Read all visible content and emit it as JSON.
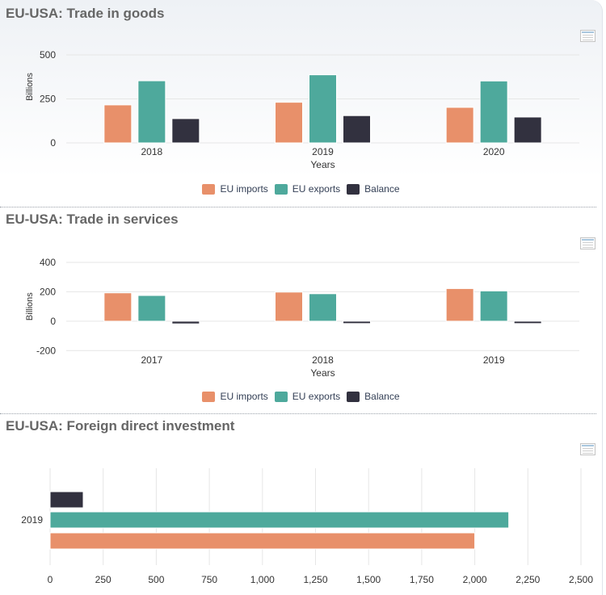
{
  "colors": {
    "imports": "#e8906a",
    "exports": "#4ea99c",
    "balance": "#32313f"
  },
  "legend": {
    "items": [
      {
        "key": "imports",
        "label": "EU imports"
      },
      {
        "key": "exports",
        "label": "EU exports"
      },
      {
        "key": "balance",
        "label": "Balance"
      }
    ]
  },
  "sections": {
    "goods": {
      "title": "EU-USA: Trade in goods",
      "table_icon": "table-view-icon"
    },
    "services": {
      "title": "EU-USA: Trade in services",
      "table_icon": "table-view-icon"
    },
    "fdi": {
      "title": "EU-USA: Foreign direct investment",
      "table_icon": "table-view-icon"
    }
  },
  "chart_data": [
    {
      "type": "bar",
      "title": "EU-USA: Trade in goods",
      "categories": [
        "2018",
        "2019",
        "2020"
      ],
      "xlabel": "Years",
      "ylabel": "Billions",
      "ylim": [
        0,
        500
      ],
      "yticks": [
        0,
        250,
        500
      ],
      "ytick_labels": [
        "0",
        "250",
        "500"
      ],
      "grid": true,
      "legend_position": "bottom",
      "series": [
        {
          "name": "EU imports",
          "values": [
            216,
            231,
            202
          ]
        },
        {
          "name": "EU exports",
          "values": [
            353,
            387,
            352
          ]
        },
        {
          "name": "Balance",
          "values": [
            138,
            155,
            147
          ]
        }
      ]
    },
    {
      "type": "bar",
      "title": "EU-USA: Trade in services",
      "categories": [
        "2017",
        "2018",
        "2019"
      ],
      "xlabel": "Years",
      "ylabel": "Billions",
      "ylim": [
        -200,
        400
      ],
      "yticks": [
        -200,
        0,
        200,
        400
      ],
      "ytick_labels": [
        "-200",
        "0",
        "200",
        "400"
      ],
      "grid": true,
      "legend_position": "bottom",
      "series": [
        {
          "name": "EU imports",
          "values": [
            193,
            198,
            222
          ]
        },
        {
          "name": "EU exports",
          "values": [
            175,
            187,
            206
          ]
        },
        {
          "name": "Balance",
          "values": [
            -18,
            -16,
            -16
          ]
        }
      ]
    },
    {
      "type": "bar",
      "orientation": "horizontal",
      "title": "EU-USA: Foreign direct investment",
      "categories": [
        "2019"
      ],
      "xlim": [
        0,
        2500
      ],
      "xticks": [
        0,
        250,
        500,
        750,
        1000,
        1250,
        1500,
        1750,
        2000,
        2250,
        2500
      ],
      "xtick_labels": [
        "0",
        "250",
        "500",
        "750",
        "1,000",
        "1,250",
        "1,500",
        "1,750",
        "2,000",
        "2,250",
        "2,500"
      ],
      "grid": true,
      "series": [
        {
          "name": "Balance",
          "values": [
            156
          ]
        },
        {
          "name": "EU exports",
          "values": [
            2160
          ]
        },
        {
          "name": "EU imports",
          "values": [
            2000
          ]
        }
      ]
    }
  ]
}
